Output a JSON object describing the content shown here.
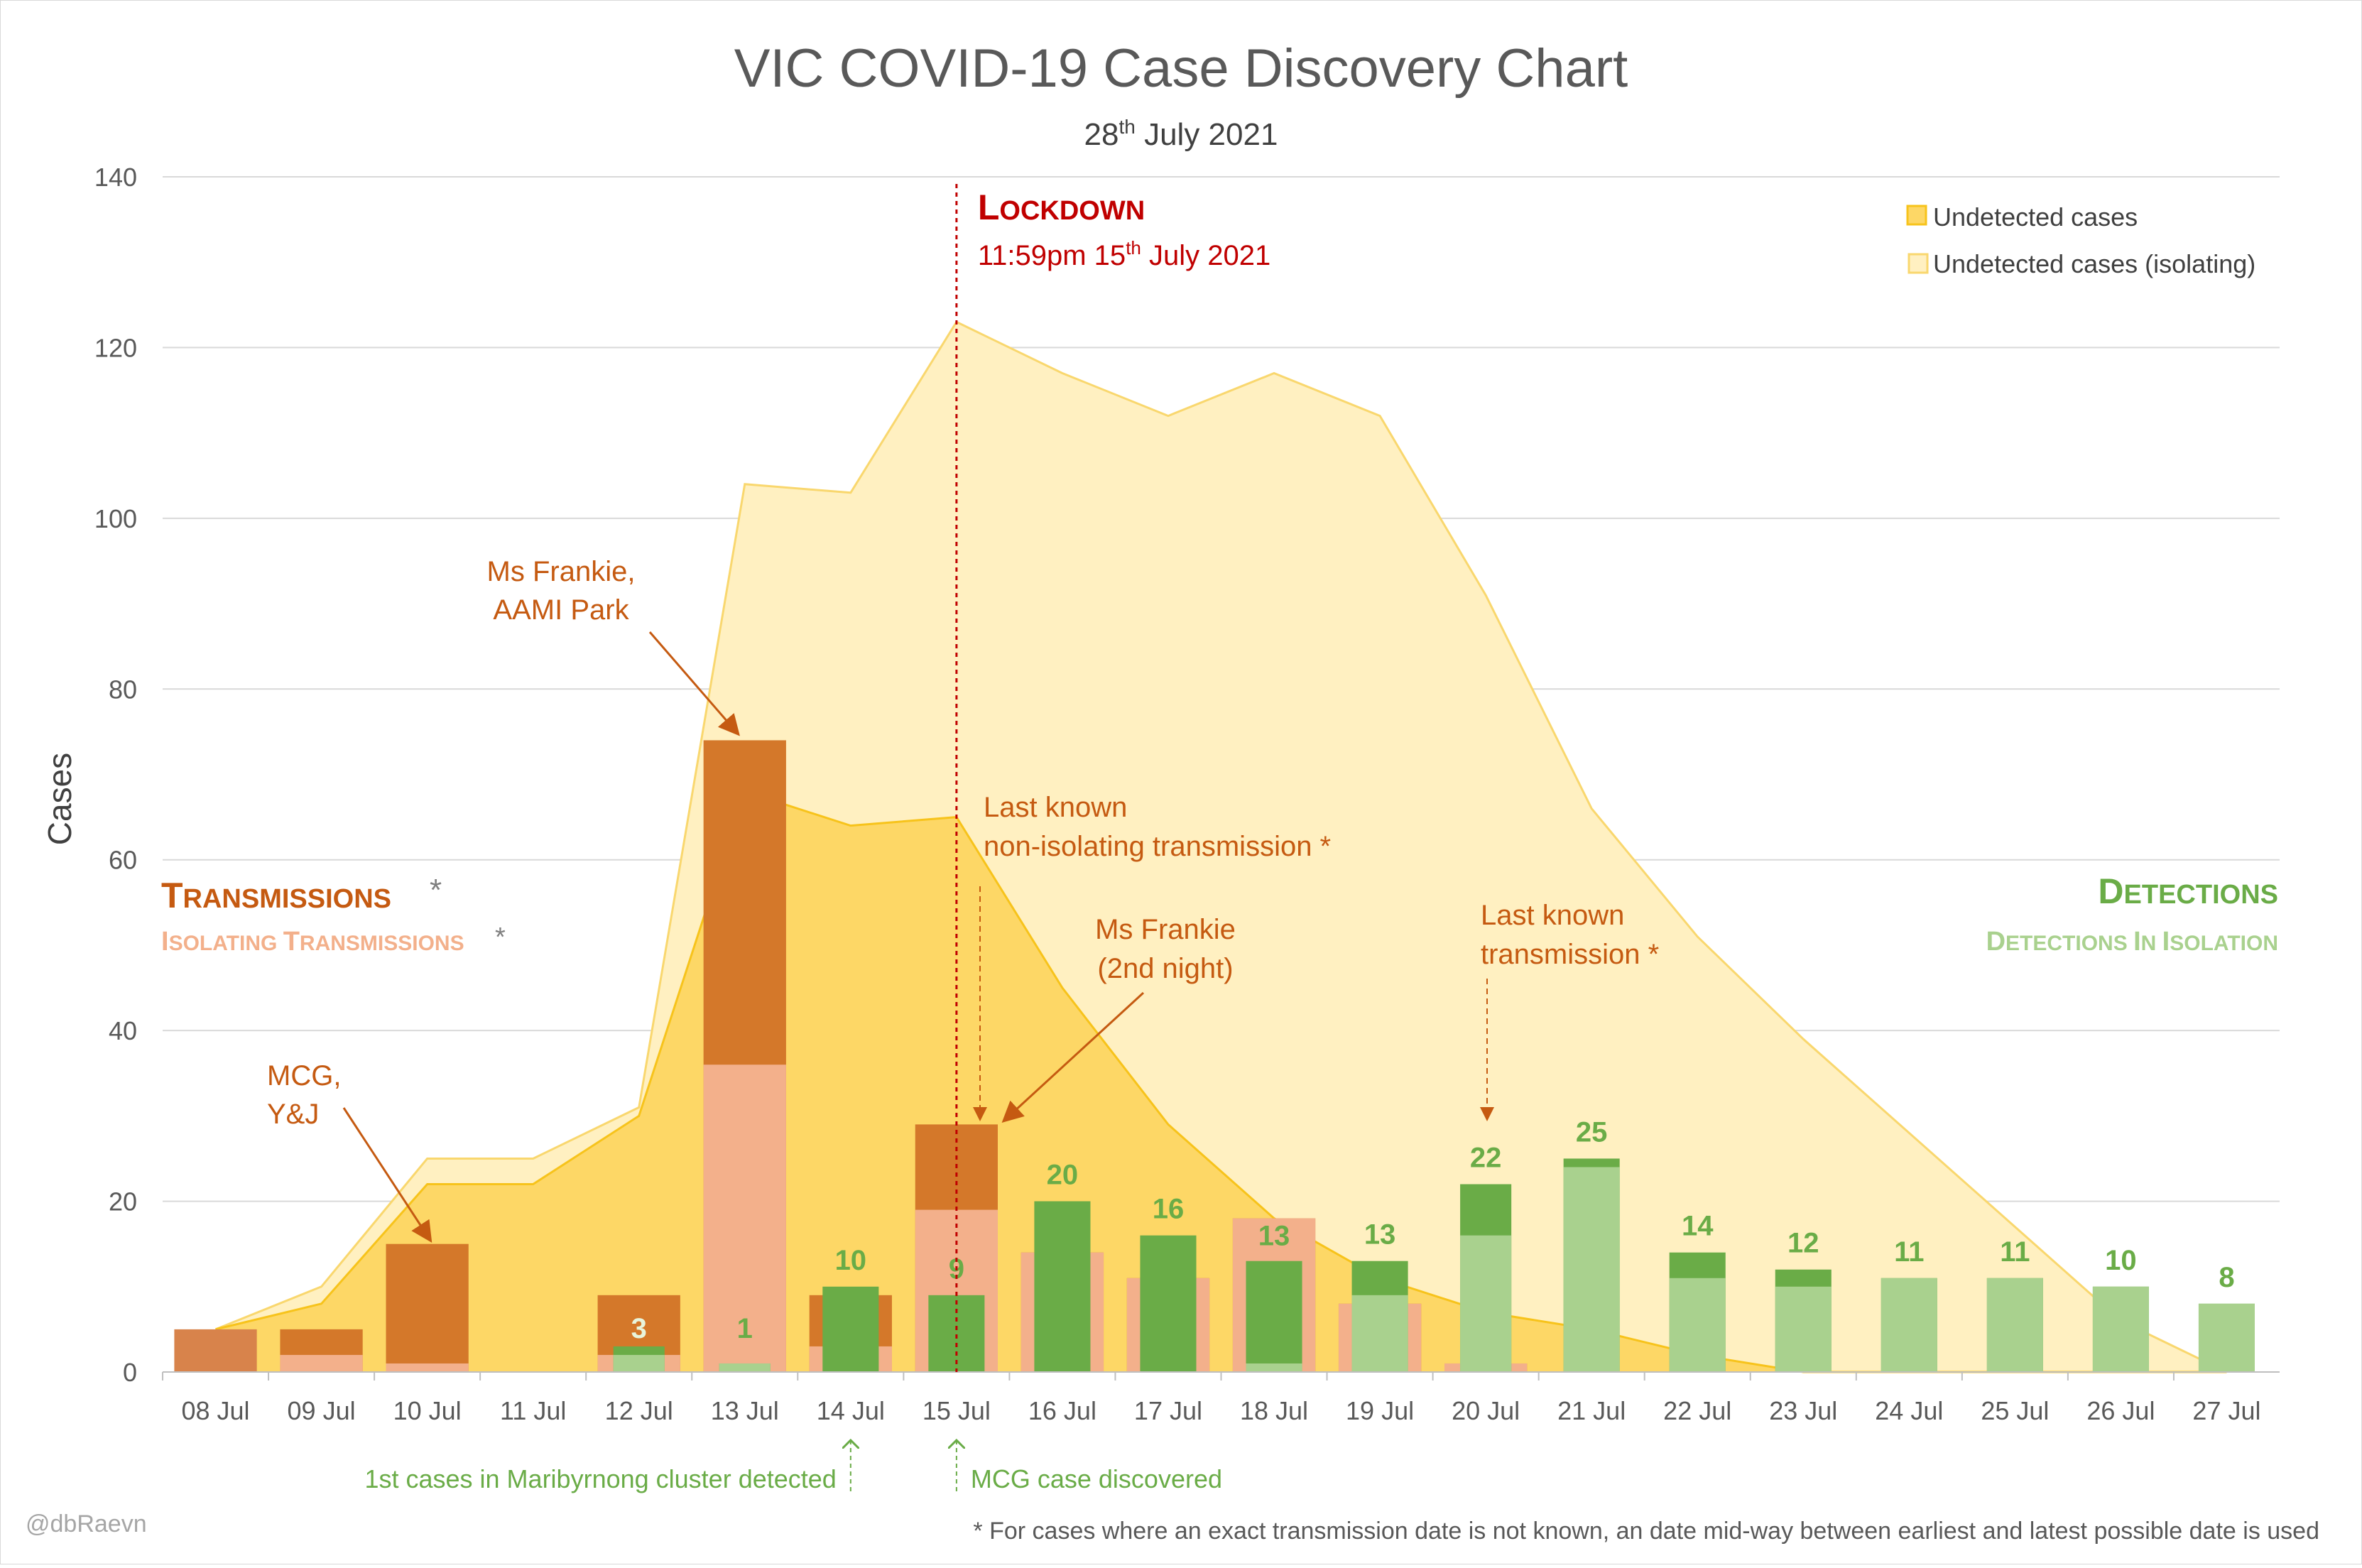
{
  "chart_data": {
    "type": "bar",
    "title": "VIC COVID-19 Case Discovery Chart",
    "subtitle": {
      "day": "28",
      "sup": "th",
      "rest": " July 2021"
    },
    "ylabel": "Cases",
    "ylim": [
      0,
      140
    ],
    "yticks": [
      0,
      20,
      40,
      60,
      80,
      100,
      120,
      140
    ],
    "grid": true,
    "categories": [
      "08 Jul",
      "09 Jul",
      "10 Jul",
      "11 Jul",
      "12 Jul",
      "13 Jul",
      "14 Jul",
      "15 Jul",
      "16 Jul",
      "17 Jul",
      "18 Jul",
      "19 Jul",
      "20 Jul",
      "21 Jul",
      "22 Jul",
      "23 Jul",
      "24 Jul",
      "25 Jul",
      "26 Jul",
      "27 Jul"
    ],
    "series": [
      {
        "name": "Undetected cases",
        "kind": "area",
        "values": [
          5,
          8,
          22,
          22,
          30,
          68,
          64,
          65,
          45,
          29,
          18,
          11,
          7,
          5,
          2,
          0,
          0,
          0,
          0,
          0
        ]
      },
      {
        "name": "Undetected cases (isolating)",
        "kind": "area",
        "values": [
          5,
          10,
          25,
          25,
          31,
          104,
          103,
          123,
          117,
          112,
          117,
          112,
          91,
          66,
          51,
          39,
          28,
          17,
          6,
          0
        ]
      },
      {
        "name": "Transmissions",
        "kind": "bar",
        "values": [
          5,
          5,
          15,
          0,
          9,
          74,
          9,
          29,
          14,
          11,
          18,
          8,
          1,
          0,
          0,
          0,
          0,
          0,
          0,
          0
        ]
      },
      {
        "name": "Isolating Transmissions",
        "kind": "bar",
        "values": [
          0,
          2,
          1,
          0,
          2,
          36,
          3,
          19,
          14,
          11,
          18,
          8,
          1,
          0,
          0,
          0,
          0,
          0,
          0,
          0
        ]
      },
      {
        "name": "Detections",
        "kind": "bar",
        "values": [
          0,
          0,
          0,
          0,
          3,
          1,
          10,
          9,
          20,
          16,
          13,
          13,
          22,
          25,
          14,
          12,
          11,
          11,
          10,
          8
        ]
      },
      {
        "name": "Detections In Isolation",
        "kind": "bar",
        "values": [
          0,
          0,
          0,
          0,
          2,
          1,
          0,
          0,
          0,
          0,
          1,
          9,
          16,
          24,
          11,
          10,
          11,
          11,
          10,
          8
        ]
      }
    ],
    "legend": {
      "position": "top-right",
      "items": [
        "Undetected cases",
        "Undetected cases (isolating)"
      ]
    },
    "labels": {
      "transmissions": "Transmissions",
      "isolating_transmissions": "Isolating Transmissions",
      "detections": "Detections",
      "detections_isolation": "Detections In Isolation",
      "asterisk": "*"
    },
    "lockdown": {
      "title": "Lockdown",
      "time": "11:59pm 15",
      "sup": "th",
      "rest": " July 2021",
      "category": "15 Jul"
    },
    "annotations": {
      "ms_frankie": [
        "Ms Frankie,",
        "AAMI Park"
      ],
      "mcg_yj": [
        "MCG,",
        "Y&J"
      ],
      "last_non_isolating": [
        "Last known",
        "non-isolating transmission *"
      ],
      "ms_frankie_2": [
        "Ms Frankie",
        "(2nd night)"
      ],
      "last_known": [
        "Last known",
        "transmission *"
      ],
      "maribyrnong": "1st cases in Maribyrnong cluster detected",
      "mcg_case": "MCG case discovered"
    },
    "credit": "@dbRaevn",
    "footnote": "* For cases where an exact transmission date is not known, an date mid-way between earliest and latest possible date is used",
    "colors": {
      "transmissions": "#d4782a",
      "transmissions_first": "#d8834b",
      "isolating_transmissions": "#f3b08b",
      "detections": "#6aac47",
      "detections_isolation": "#a9d18e",
      "undetected_area": "#fdd766",
      "undetected_line": "#f7c31b",
      "isolating_area": "#fff0c1",
      "isolating_line": "#f9d76e",
      "lockdown": "#c00000",
      "annotation": "#c55a11",
      "detection_text": "#6aac47",
      "grid": "#d9d9d9",
      "axis_text": "#595959"
    }
  }
}
